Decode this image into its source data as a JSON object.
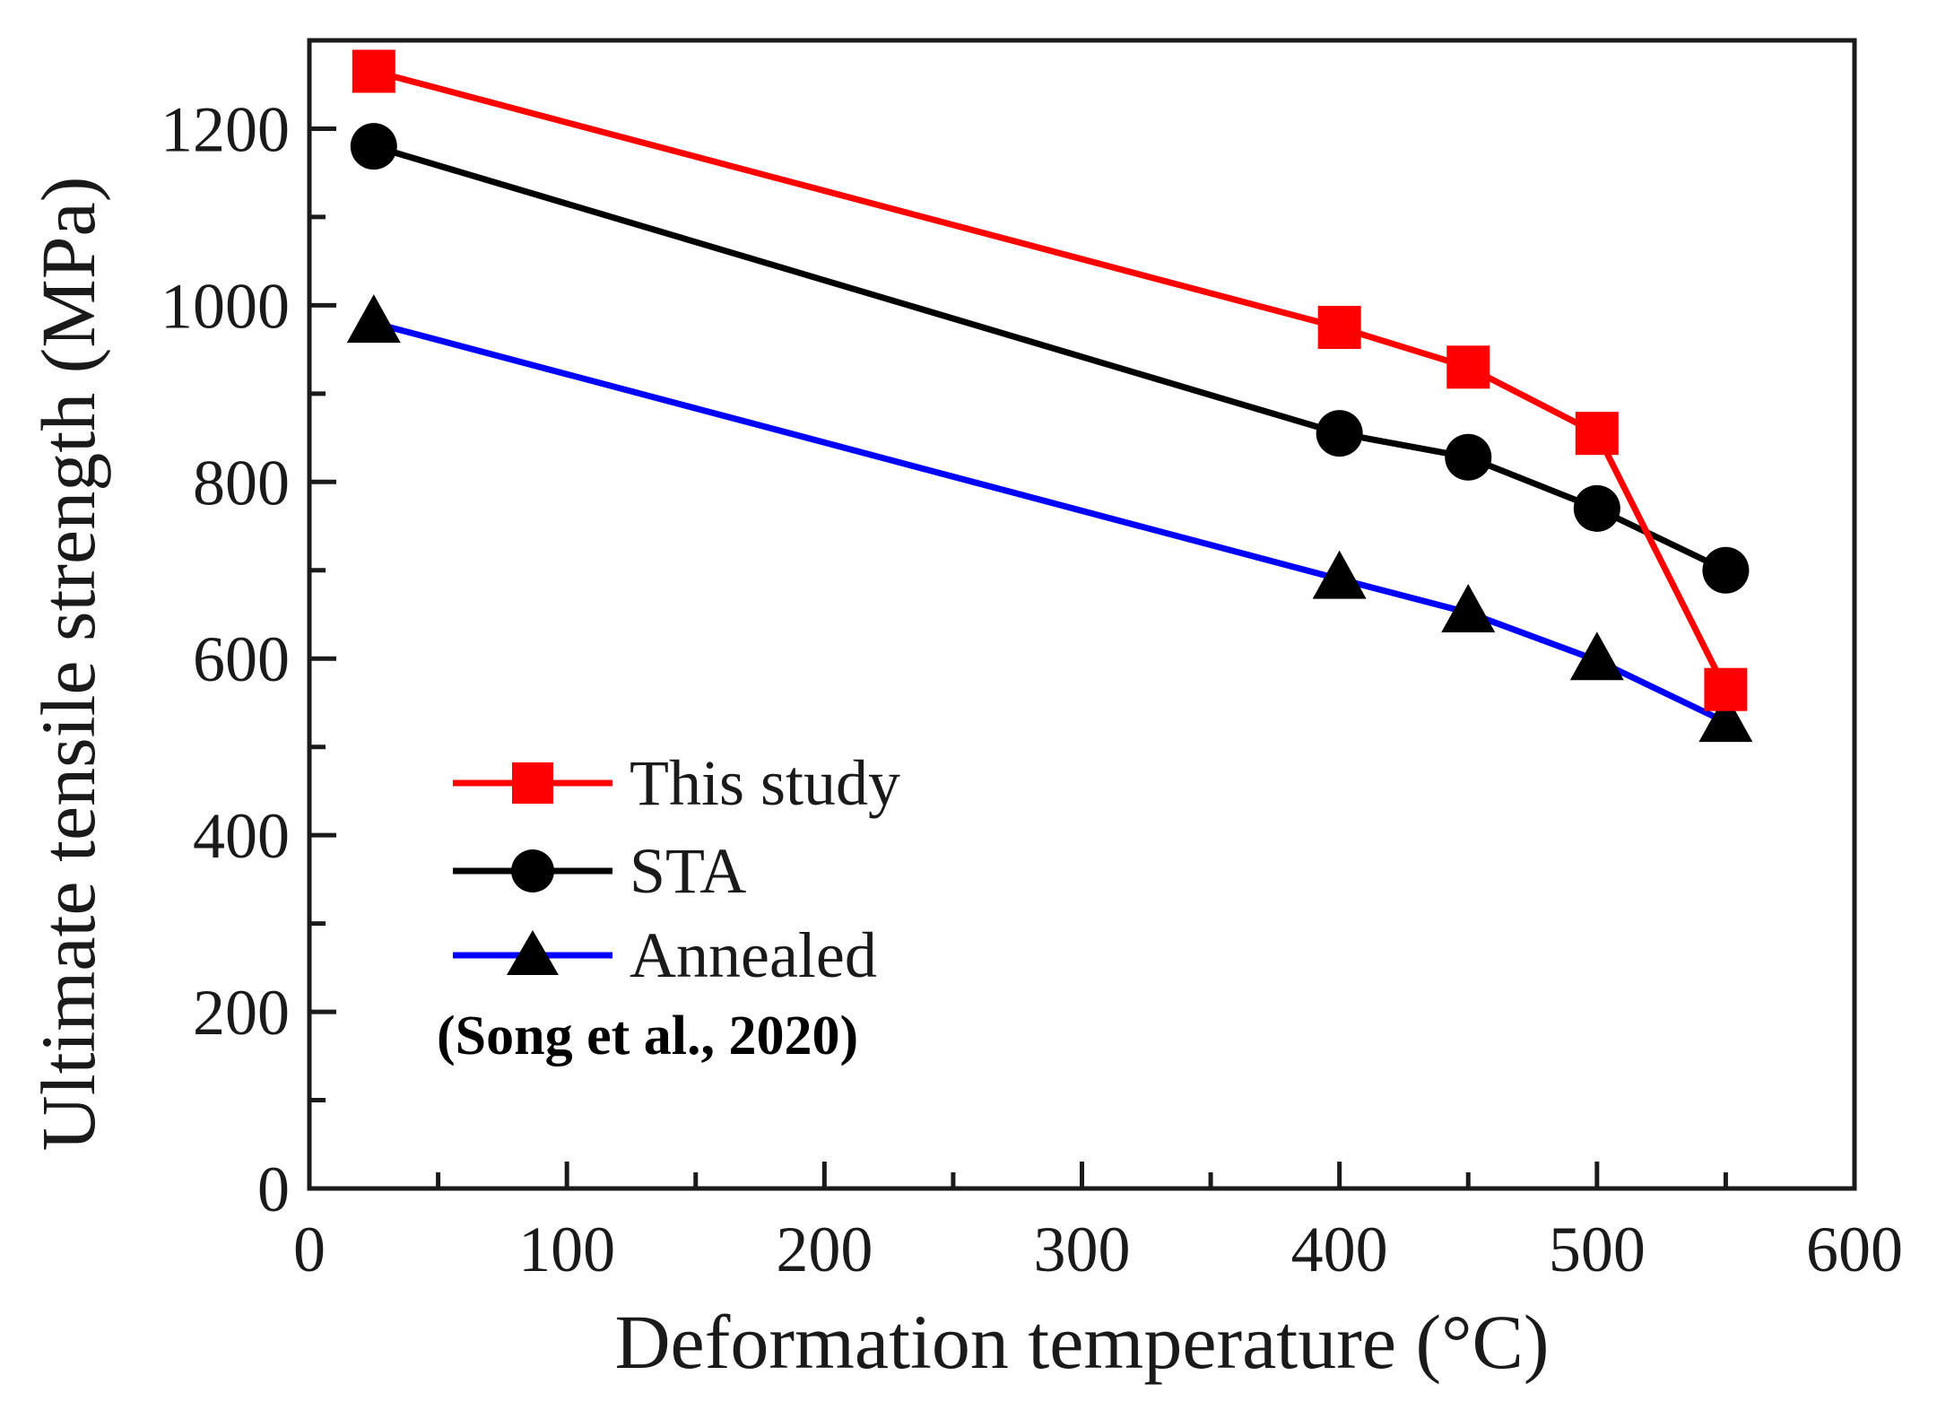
{
  "chart_data": {
    "type": "line",
    "title": "",
    "xlabel": "Deformation temperature (°C)",
    "ylabel": "Ultimate tensile strength (MPa)",
    "xlim": [
      0,
      600
    ],
    "ylim": [
      0,
      1300
    ],
    "xticks": [
      0,
      100,
      200,
      300,
      400,
      500,
      600
    ],
    "yticks": [
      0,
      200,
      400,
      600,
      800,
      1000,
      1200
    ],
    "grid": false,
    "legend_position": "lower-left",
    "series": [
      {
        "name": "This study",
        "color": "#ff0000",
        "marker": "square",
        "x": [
          25,
          400,
          450,
          500,
          550
        ],
        "y": [
          1265,
          975,
          930,
          855,
          565
        ]
      },
      {
        "name": "STA",
        "color": "#000000",
        "marker": "circle",
        "x": [
          25,
          400,
          450,
          500,
          550
        ],
        "y": [
          1180,
          855,
          828,
          770,
          700
        ]
      },
      {
        "name": "Annealed",
        "color": "#0000ff",
        "marker": "triangle",
        "x": [
          25,
          400,
          450,
          500,
          550
        ],
        "y": [
          980,
          690,
          652,
          598,
          528
        ]
      }
    ],
    "annotation": "(Song et al., 2020)"
  }
}
